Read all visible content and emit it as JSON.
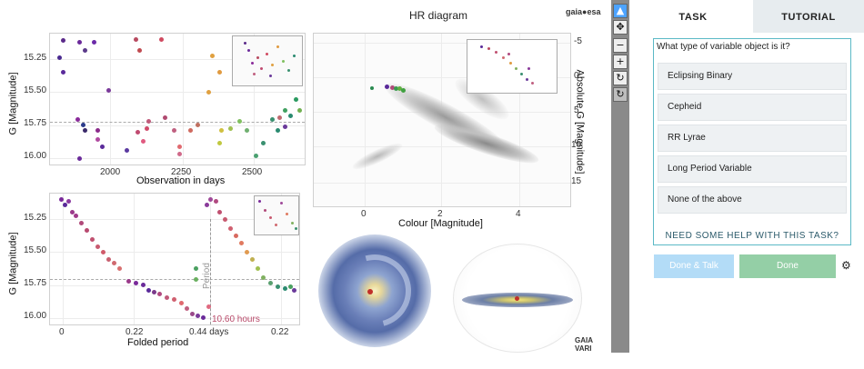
{
  "top_title": "HR diagram",
  "logo_text": "gaia●esa",
  "bottom_logo": "GAIA VARI",
  "plots": {
    "lc": {
      "ylabel": "G [Magnitude]",
      "xlabel": "Observation in days",
      "yticks": [
        "15.25",
        "15.50",
        "15.75",
        "16.00"
      ],
      "xticks": [
        "2000",
        "2250",
        "2500"
      ]
    },
    "folded": {
      "ylabel": "G [Magnitude]",
      "xlabel": "Folded period",
      "yticks": [
        "15.25",
        "15.50",
        "15.75",
        "16.00"
      ],
      "xticks": [
        "0",
        "0.22",
        "0.44 days",
        "0.22"
      ],
      "period_label": "Period",
      "period_value": "10.60 hours"
    },
    "hr": {
      "ylabel": "Absolute G [Magnitude]",
      "xlabel": "Colour [Magnitude]",
      "yticks": [
        "-5",
        "0",
        "5",
        "10",
        "15"
      ],
      "xticks": [
        "0",
        "2",
        "4"
      ]
    }
  },
  "toolbar": {
    "pointer_icon": "cursor-arrow",
    "move_icon": "move-arrows",
    "zoom_out_icon": "minus",
    "zoom_in_icon": "plus",
    "reset_icon": "refresh",
    "reset2_icon": "refresh"
  },
  "side": {
    "tab_task": "TASK",
    "tab_tutorial": "TUTORIAL",
    "question": "What type of variable object is it?",
    "answers": [
      "Eclipsing Binary",
      "Cepheid",
      "RR Lyrae",
      "Long Period Variable",
      "None of the above"
    ],
    "help": "NEED SOME HELP WITH THIS TASK?",
    "done_talk": "Done & Talk",
    "done": "Done",
    "settings_icon": "gear"
  },
  "colors": {
    "accent": "#5bb9c6",
    "done_talk_bg": "#b3dcf7",
    "done_bg": "#94cfa6",
    "period_label": "#b94a6a"
  }
}
